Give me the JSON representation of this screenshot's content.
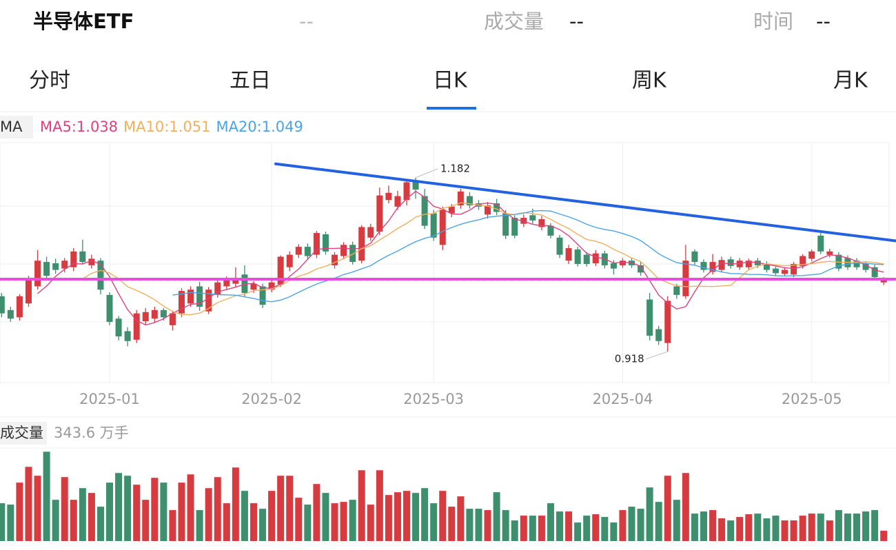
{
  "header": {
    "name": "半导体ETF",
    "price": "--",
    "volume_label": "成交量",
    "volume": "--",
    "time_label": "时间",
    "time": "--"
  },
  "tabs": [
    "分时",
    "五日",
    "日K",
    "周K",
    "月K"
  ],
  "active_tab": 2,
  "chart_data": [
    {
      "type": "candlestick",
      "indicator": "MA",
      "ma": [
        {
          "label": "MA5:1.038",
          "period": 5,
          "color": "#e0407f"
        },
        {
          "label": "MA10:1.051",
          "period": 10,
          "color": "#f2b05e"
        },
        {
          "label": "MA20:1.049",
          "period": 20,
          "color": "#4aa3e8"
        }
      ],
      "categories": [
        null,
        null,
        null,
        null,
        null,
        null,
        null,
        null,
        null,
        null,
        null,
        null,
        "2025-01",
        null,
        null,
        null,
        null,
        null,
        null,
        null,
        null,
        null,
        null,
        null,
        null,
        null,
        null,
        null,
        null,
        null,
        "2025-02",
        null,
        null,
        null,
        null,
        null,
        null,
        null,
        null,
        null,
        null,
        null,
        null,
        null,
        null,
        null,
        null,
        null,
        "2025-03",
        null,
        null,
        null,
        null,
        null,
        null,
        null,
        null,
        null,
        null,
        null,
        null,
        null,
        null,
        null,
        null,
        null,
        null,
        null,
        null,
        "2025-04",
        null,
        null,
        null,
        null,
        null,
        null,
        null,
        null,
        null,
        null,
        null,
        null,
        null,
        null,
        null,
        null,
        null,
        null,
        null,
        null,
        "2025-05",
        null,
        null,
        null,
        null,
        null,
        null,
        null,
        null
      ],
      "open": [
        1.002,
        0.981,
        0.97,
        0.991,
        1.017,
        1.054,
        1.052,
        1.044,
        1.046,
        1.07,
        1.049,
        1.056,
        1.004,
        0.968,
        0.949,
        0.936,
        0.964,
        0.968,
        0.981,
        0.958,
        0.976,
        0.991,
        1.017,
        0.979,
        1.004,
        1.017,
        1.021,
        1.035,
        1.012,
        1.017,
        1.012,
        1.02,
        1.046,
        1.065,
        1.077,
        1.065,
        1.096,
        1.049,
        1.063,
        1.08,
        1.056,
        1.091,
        1.1,
        1.148,
        1.138,
        1.148,
        1.177,
        1.154,
        1.128,
        1.08,
        1.128,
        1.14,
        1.154,
        1.143,
        1.126,
        1.143,
        1.128,
        1.121,
        1.112,
        1.125,
        1.107,
        1.109,
        1.091,
        1.056,
        1.073,
        1.065,
        1.052,
        1.067,
        1.052,
        1.049,
        1.056,
        1.049,
        0.997,
        0.952,
        0.931,
        1.017,
        1.002,
        1.07,
        1.054,
        1.039,
        1.042,
        1.058,
        1.046,
        1.046,
        1.056,
        1.051,
        1.044,
        1.036,
        1.035,
        1.048,
        1.059,
        1.094,
        1.065,
        1.065,
        1.06,
        1.056,
        1.051,
        1.046,
        1.023
      ],
      "close": [
        0.976,
        0.968,
        1.002,
        1.028,
        1.056,
        1.033,
        1.042,
        1.056,
        1.07,
        1.054,
        1.059,
        1.012,
        0.963,
        0.941,
        0.934,
        0.976,
        0.978,
        0.981,
        0.97,
        0.976,
        1.01,
        1.012,
        0.986,
        1.012,
        1.023,
        1.028,
        1.03,
        1.007,
        1.021,
        0.989,
        1.023,
        1.062,
        1.065,
        1.077,
        1.063,
        1.098,
        1.07,
        1.065,
        1.08,
        1.054,
        1.107,
        1.107,
        1.155,
        1.159,
        1.154,
        1.175,
        1.164,
        1.109,
        1.091,
        1.133,
        1.138,
        1.161,
        1.14,
        1.138,
        1.14,
        1.13,
        1.094,
        1.094,
        1.121,
        1.117,
        1.119,
        1.094,
        1.065,
        1.075,
        1.051,
        1.051,
        1.067,
        1.049,
        1.044,
        1.056,
        1.049,
        1.038,
        0.942,
        0.934,
        0.995,
        1.004,
        1.056,
        1.054,
        1.042,
        1.054,
        1.057,
        1.048,
        1.056,
        1.056,
        1.049,
        1.042,
        1.037,
        1.042,
        1.051,
        1.063,
        1.07,
        1.07,
        1.07,
        1.044,
        1.046,
        1.046,
        1.042,
        1.031,
        1.028
      ],
      "low": [
        0.97,
        0.963,
        0.965,
        0.986,
        1.012,
        1.028,
        1.036,
        1.038,
        1.04,
        1.05,
        1.044,
        1.005,
        0.958,
        0.935,
        0.926,
        0.931,
        0.958,
        0.962,
        0.965,
        0.95,
        0.97,
        0.986,
        0.98,
        0.975,
        1.0,
        1.012,
        1.015,
        1.002,
        1.007,
        0.984,
        1.008,
        1.016,
        1.04,
        1.06,
        1.058,
        1.06,
        1.065,
        1.044,
        1.058,
        1.05,
        1.052,
        1.086,
        1.095,
        1.143,
        1.133,
        1.14,
        1.15,
        1.104,
        1.086,
        1.072,
        1.122,
        1.135,
        1.135,
        1.133,
        1.12,
        1.125,
        1.089,
        1.09,
        1.107,
        1.112,
        1.102,
        1.09,
        1.06,
        1.051,
        1.047,
        1.047,
        1.048,
        1.044,
        1.035,
        1.045,
        1.045,
        1.033,
        0.935,
        0.928,
        0.918,
        0.998,
        0.998,
        1.049,
        1.038,
        1.035,
        1.038,
        1.044,
        1.042,
        1.043,
        1.045,
        1.038,
        1.033,
        1.032,
        1.031,
        1.044,
        1.055,
        1.066,
        1.061,
        1.04,
        1.042,
        1.042,
        1.038,
        1.027,
        1.019
      ],
      "high": [
        1.007,
        0.986,
        1.005,
        1.033,
        1.072,
        1.062,
        1.059,
        1.06,
        1.075,
        1.088,
        1.065,
        1.06,
        1.008,
        0.972,
        0.955,
        0.981,
        0.984,
        0.986,
        0.984,
        0.98,
        1.014,
        1.017,
        1.024,
        1.016,
        1.028,
        1.032,
        1.046,
        1.049,
        1.025,
        1.021,
        1.03,
        1.064,
        1.07,
        1.081,
        1.082,
        1.101,
        1.1,
        1.069,
        1.084,
        1.085,
        1.11,
        1.112,
        1.167,
        1.17,
        1.162,
        1.178,
        1.182,
        1.165,
        1.133,
        1.138,
        1.142,
        1.165,
        1.16,
        1.148,
        1.145,
        1.15,
        1.133,
        1.125,
        1.126,
        1.135,
        1.124,
        1.113,
        1.095,
        1.08,
        1.077,
        1.069,
        1.072,
        1.071,
        1.057,
        1.06,
        1.06,
        1.054,
        1.007,
        0.957,
        1.002,
        1.021,
        1.08,
        1.073,
        1.058,
        1.066,
        1.062,
        1.062,
        1.06,
        1.059,
        1.06,
        1.055,
        1.047,
        1.046,
        1.054,
        1.066,
        1.073,
        1.098,
        1.074,
        1.069,
        1.064,
        1.06,
        1.055,
        1.05,
        1.031
      ],
      "up_color": "#d63b3f",
      "down_color": "#3d8f6e",
      "ylim": [
        0.871,
        1.232
      ],
      "high_label": "1.182",
      "low_label": "0.918",
      "trend_lines": [
        {
          "color": "#2461e0",
          "points": [
            [
              30.45,
              1.203
            ],
            [
              99.4,
              1.086
            ]
          ]
        },
        {
          "color": "#e84ce0",
          "points": [
            [
              -0.2,
              1.028
            ],
            [
              99.4,
              1.028
            ]
          ]
        }
      ],
      "last_price_color": "#f07a2a"
    },
    {
      "type": "bar",
      "label": "成交量",
      "value_label": "343.6 万手",
      "values": [
        1260,
        1214,
        1947,
        2473,
        2176,
        2977,
        1374,
        2130,
        1374,
        1763,
        1603,
        1145,
        1947,
        2267,
        2176,
        1878,
        1374,
        2107,
        1947,
        1031,
        1947,
        2221,
        1031,
        1763,
        2130,
        1260,
        2450,
        1672,
        1260,
        1076,
        1672,
        2176,
        2176,
        1443,
        1214,
        1901,
        1603,
        1260,
        1305,
        1374,
        2359,
        1214,
        2359,
        1534,
        1626,
        1672,
        1603,
        1763,
        1260,
        1672,
        1145,
        1489,
        1076,
        1076,
        1031,
        1626,
        1031,
        687,
        847,
        847,
        847,
        1260,
        985,
        985,
        618,
        847,
        893,
        802,
        618,
        1031,
        1145,
        1076,
        1786,
        1305,
        2176,
        1374,
        2267,
        916,
        985,
        1031,
        756,
        687,
        802,
        893,
        916,
        756,
        847,
        687,
        687,
        847,
        916,
        916,
        687,
        1031,
        916,
        916,
        985,
        1031,
        343.6
      ],
      "ylim": [
        0,
        3100
      ]
    }
  ]
}
